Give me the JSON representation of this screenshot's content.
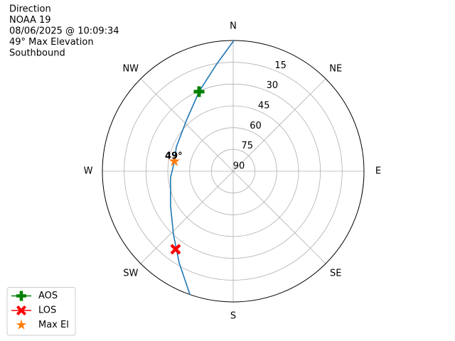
{
  "chart_data": {
    "type": "polar",
    "title": [
      "Direction",
      "NOAA 19",
      "08/06/2025 @ 10:09:34",
      "49° Max Elevation",
      "Southbound"
    ],
    "rlim": [
      90,
      0
    ],
    "rticks": [
      15,
      30,
      45,
      60,
      75,
      90
    ],
    "thetaticks": [
      {
        "value": 0,
        "label": "N"
      },
      {
        "value": 45,
        "label": "NE"
      },
      {
        "value": 90,
        "label": "E"
      },
      {
        "value": 135,
        "label": "SE"
      },
      {
        "value": 180,
        "label": "S"
      },
      {
        "value": 225,
        "label": "SW"
      },
      {
        "value": 270,
        "label": "W"
      },
      {
        "value": 315,
        "label": "NW"
      }
    ],
    "grid": true,
    "legend": "lower left",
    "track": {
      "color": "#1f77b4",
      "theta": [
        0.3,
        351.3,
        336.8,
        317.1,
        293,
        279.6,
        264.2,
        240.9,
        223.3,
        210.5,
        199.3
      ],
      "r": [
        0,
        15.3,
        30.4,
        42.6,
        47.5,
        49,
        46.7,
        40.7,
        30.1,
        16.8,
        0
      ]
    },
    "series": [
      {
        "name": "AOS",
        "color": "#008000",
        "marker": "plus",
        "legend_line": true,
        "theta": [
          336.8
        ],
        "r": [
          30.4
        ]
      },
      {
        "name": "LOS",
        "color": "#ff0000",
        "marker": "x",
        "legend_line": true,
        "theta": [
          216.4
        ],
        "r": [
          23.2
        ]
      },
      {
        "name": "Max El",
        "color": "#ff7f0e",
        "marker": "star",
        "legend_line": false,
        "theta": [
          279.6
        ],
        "r": [
          49
        ]
      }
    ],
    "annotation": "49°"
  }
}
